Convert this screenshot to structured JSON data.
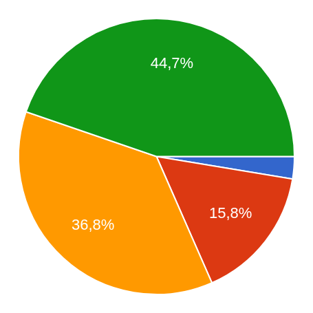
{
  "chart_data": {
    "type": "pie",
    "values": [
      2.6,
      15.8,
      36.8,
      44.7
    ],
    "value_labels": [
      null,
      "15,8%",
      "36,8%",
      "44,7%"
    ],
    "colors": [
      "#3366cc",
      "#dc3912",
      "#ff9900",
      "#109618"
    ],
    "data_labels": true
  }
}
